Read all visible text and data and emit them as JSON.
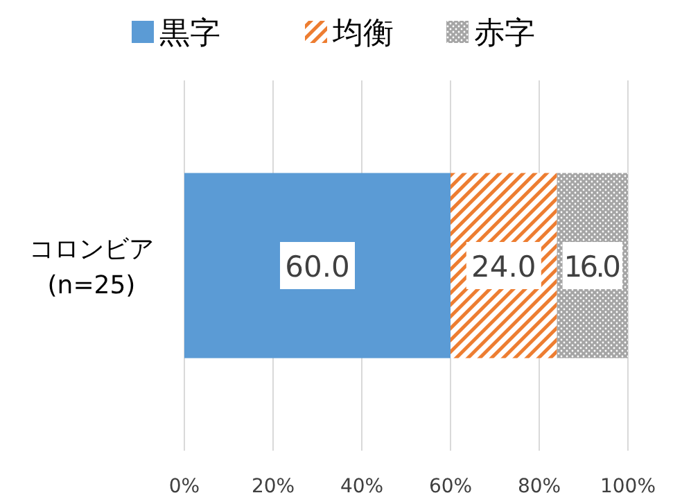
{
  "chart_data": {
    "type": "bar",
    "orientation": "horizontal",
    "stacked": true,
    "categories": [
      "コロンビア\n(n=25)"
    ],
    "series": [
      {
        "name": "黒字",
        "color": "#5b9bd5",
        "values": [
          60.0
        ],
        "value_labels": [
          "60.0"
        ]
      },
      {
        "name": "均衡",
        "color": "#ed7d31",
        "values": [
          24.0
        ],
        "value_labels": [
          "24.0"
        ]
      },
      {
        "name": "赤字",
        "color": "#a5a5a5",
        "values": [
          16.0
        ],
        "value_labels": [
          "16.0"
        ]
      }
    ],
    "xlim": [
      0,
      100
    ],
    "xticks": [
      {
        "value": 0,
        "label": "0%"
      },
      {
        "value": 20,
        "label": "20%"
      },
      {
        "value": 40,
        "label": "40%"
      },
      {
        "value": 60,
        "label": "60%"
      },
      {
        "value": 80,
        "label": "80%"
      },
      {
        "value": 100,
        "label": "100%"
      }
    ],
    "grid": "x",
    "legend": "top"
  }
}
